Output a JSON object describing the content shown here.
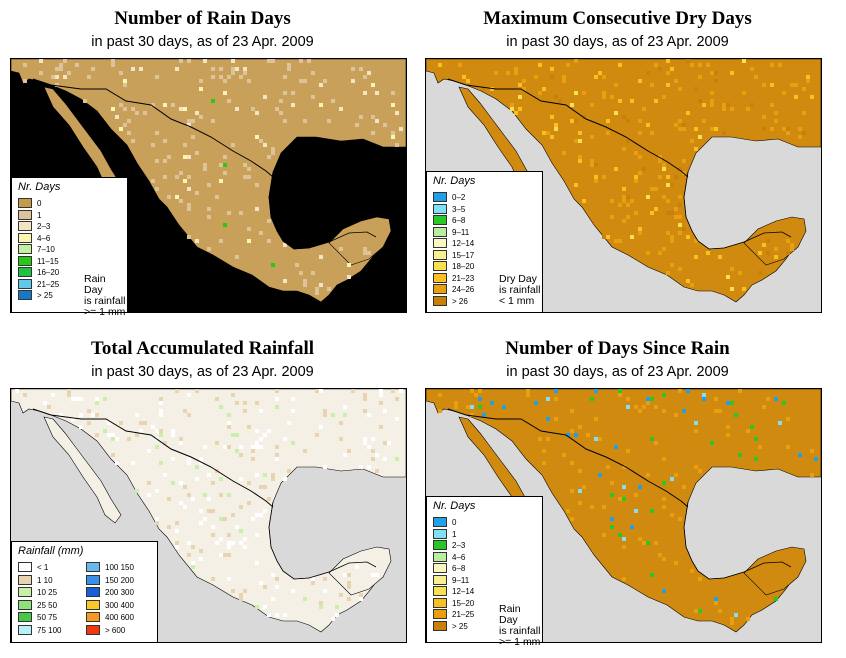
{
  "panels": [
    {
      "title": "Number of Rain Days",
      "subtitle": "in past 30 days, as of  23 Apr. 2009",
      "land_color": "#c9a05a",
      "legend": {
        "title": "Nr. Days",
        "items": [
          {
            "label": "0",
            "color": "#c49a4d"
          },
          {
            "label": "1",
            "color": "#dcc39a"
          },
          {
            "label": "2–3",
            "color": "#f3e4c2"
          },
          {
            "label": "4–6",
            "color": "#fbf5b0"
          },
          {
            "label": "7–10",
            "color": "#c0f0a0"
          },
          {
            "label": "11–15",
            "color": "#28c818"
          },
          {
            "label": "16–20",
            "color": "#20c040"
          },
          {
            "label": "21–25",
            "color": "#60c8e8"
          },
          {
            "label": "> 25",
            "color": "#1878c8"
          }
        ],
        "note": [
          "Rain Day",
          "is rainfall",
          ">= 1 mm"
        ]
      }
    },
    {
      "title": "Maximum Consecutive Dry Days",
      "subtitle": "in past 30 days, as of  23 Apr. 2009",
      "land_color": "#d08a10",
      "legend": {
        "title": "Nr. Days",
        "items": [
          {
            "label": "0–2",
            "color": "#20a0e8"
          },
          {
            "label": "3–5",
            "color": "#80e0f8"
          },
          {
            "label": "6–8",
            "color": "#28c828"
          },
          {
            "label": "9–11",
            "color": "#b8f0a0"
          },
          {
            "label": "12–14",
            "color": "#f8f8c0"
          },
          {
            "label": "15–17",
            "color": "#f8f090"
          },
          {
            "label": "18–20",
            "color": "#f8e050"
          },
          {
            "label": "21–23",
            "color": "#f8c020"
          },
          {
            "label": "24–26",
            "color": "#e8a010"
          },
          {
            "label": "> 26",
            "color": "#c88008"
          }
        ],
        "note": [
          "Dry Day",
          "is rainfall",
          "< 1 mm"
        ]
      }
    },
    {
      "title": "Total Accumulated Rainfall",
      "subtitle": "in past 30 days, as of  23 Apr. 2009",
      "land_color": "#f5f0e6",
      "legend": {
        "title": "Rainfall (mm)",
        "col1": [
          {
            "label": "< 1",
            "color": "#ffffff"
          },
          {
            "label": "1     10",
            "color": "#e8d4b0"
          },
          {
            "label": "10   25",
            "color": "#c8f0a8"
          },
          {
            "label": "25   50",
            "color": "#90e080"
          },
          {
            "label": "50   75",
            "color": "#48c848"
          },
          {
            "label": "75  100",
            "color": "#b8f0f8"
          }
        ],
        "col2": [
          {
            "label": "100  150",
            "color": "#68b8f0"
          },
          {
            "label": "150  200",
            "color": "#3890e8"
          },
          {
            "label": "200  300",
            "color": "#1860d8"
          },
          {
            "label": "300  400",
            "color": "#f8c828"
          },
          {
            "label": "400  600",
            "color": "#f89820"
          },
          {
            "label": "> 600",
            "color": "#f03810"
          }
        ]
      }
    },
    {
      "title": "Number of Days Since Rain",
      "subtitle": "in past 30 days, as of  23 Apr. 2009",
      "land_color": "#d08a10",
      "legend": {
        "title": "Nr. Days",
        "items": [
          {
            "label": "0",
            "color": "#20a0e8"
          },
          {
            "label": "1",
            "color": "#80e0f8"
          },
          {
            "label": "2–3",
            "color": "#28c828"
          },
          {
            "label": "4–6",
            "color": "#b8f0a0"
          },
          {
            "label": "6–8",
            "color": "#f8f8c0"
          },
          {
            "label": "9–11",
            "color": "#f8f090"
          },
          {
            "label": "12–14",
            "color": "#f8e050"
          },
          {
            "label": "15–20",
            "color": "#f8c020"
          },
          {
            "label": "21–25",
            "color": "#e8a010"
          },
          {
            "label": "> 25",
            "color": "#c88008"
          }
        ],
        "note": [
          "Rain Day",
          "is rainfall",
          ">= 1 mm"
        ]
      }
    }
  ],
  "colors": {
    "sea": "#d9d9d9",
    "border": "#000000"
  }
}
